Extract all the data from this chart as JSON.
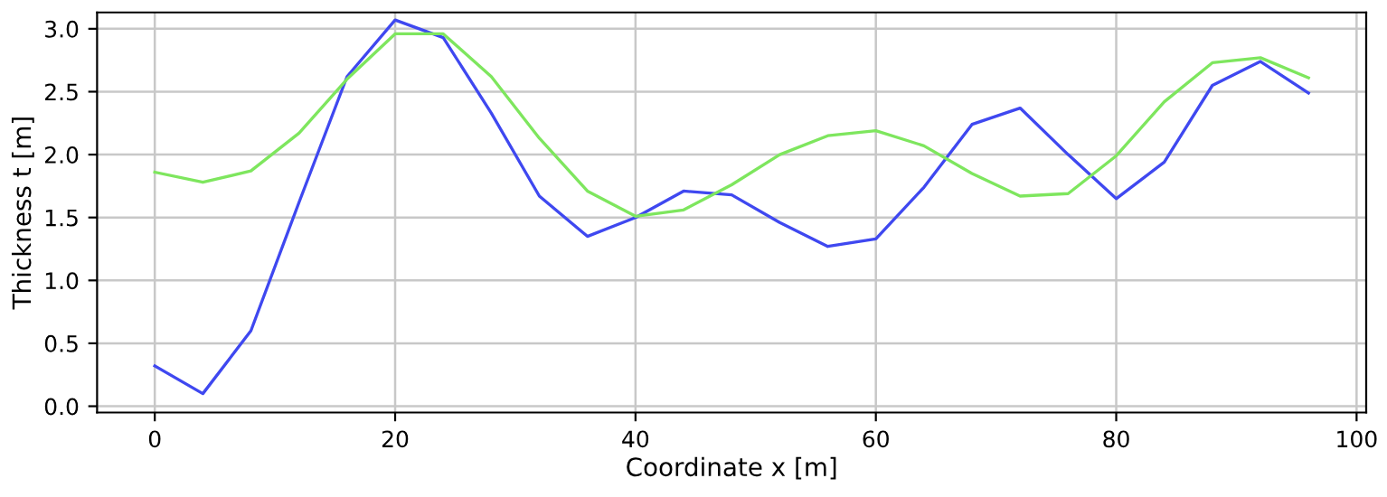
{
  "chart_data": {
    "type": "line",
    "xlabel": "Coordinate x [m]",
    "ylabel": "Thickness t [m]",
    "x": [
      0,
      4,
      8,
      12,
      16,
      20,
      24,
      28,
      32,
      36,
      40,
      44,
      48,
      52,
      56,
      60,
      64,
      68,
      72,
      76,
      80,
      84,
      88,
      92,
      96
    ],
    "series": [
      {
        "color": "#3f48f0",
        "values": [
          0.32,
          0.1,
          0.6,
          1.62,
          2.62,
          3.07,
          2.93,
          2.33,
          1.67,
          1.35,
          1.5,
          1.71,
          1.68,
          1.46,
          1.27,
          1.33,
          1.74,
          2.24,
          2.37,
          2.0,
          1.65,
          1.94,
          2.55,
          2.74,
          2.49
        ]
      },
      {
        "color": "#7ee65e",
        "values": [
          1.86,
          1.78,
          1.87,
          2.17,
          2.6,
          2.96,
          2.96,
          2.62,
          2.13,
          1.71,
          1.51,
          1.56,
          1.76,
          2.0,
          2.15,
          2.19,
          2.07,
          1.85,
          1.67,
          1.69,
          1.99,
          2.42,
          2.73,
          2.77,
          2.61
        ]
      }
    ],
    "xlim": [
      -4.8,
      100.8
    ],
    "xticks": [
      0,
      20,
      40,
      60,
      80,
      100
    ],
    "ylim": [
      -0.05,
      3.13
    ],
    "yticks": [
      {
        "value": 0,
        "label": "0.0"
      },
      0.5,
      {
        "value": 1,
        "label": "1.0"
      },
      1.5,
      {
        "value": 2,
        "label": "2.0"
      },
      2.5,
      {
        "value": 3,
        "label": "3.0"
      }
    ],
    "grid": true
  }
}
